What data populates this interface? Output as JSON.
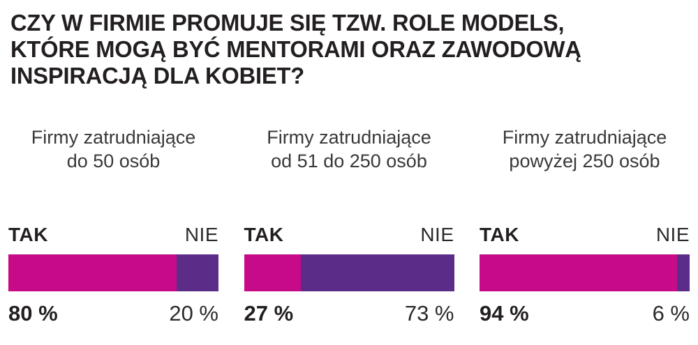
{
  "title": {
    "lines": [
      "CZY W FIRMIE PROMUJE SIĘ TZW. ROLE MODELS,",
      "KTÓRE MOGĄ BYĆ MENTORAMI ORAZ ZAWODOWĄ",
      "INSPIRACJĄ DLA KOBIET?"
    ]
  },
  "colors": {
    "yes_bar": "#c60a88",
    "no_bar": "#5b2d88",
    "title_text": "#231f20"
  },
  "columns": [
    {
      "subtitle_line1": "Firmy zatrudniające",
      "subtitle_line2": "do 50 osób",
      "yes_label": "TAK",
      "no_label": "NIE",
      "yes_value": 80,
      "no_value": 20,
      "yes_value_text": "80 %",
      "no_value_text": "20 %"
    },
    {
      "subtitle_line1": "Firmy zatrudniające",
      "subtitle_line2": "od 51 do 250 osób",
      "yes_label": "TAK",
      "no_label": "NIE",
      "yes_value": 27,
      "no_value": 73,
      "yes_value_text": "27 %",
      "no_value_text": "73 %"
    },
    {
      "subtitle_line1": "Firmy zatrudniające",
      "subtitle_line2": "powyżej 250 osób",
      "yes_label": "TAK",
      "no_label": "NIE",
      "yes_value": 94,
      "no_value": 6,
      "yes_value_text": "94 %",
      "no_value_text": "6 %"
    }
  ],
  "chart_data": {
    "type": "bar",
    "orientation": "horizontal_stacked",
    "title": "CZY W FIRMIE PROMUJE SIĘ TZW. ROLE MODELS, KTÓRE MOGĄ BYĆ MENTORAMI ORAZ ZAWODOWĄ INSPIRACJĄ DLA KOBIET?",
    "categories": [
      "Firmy zatrudniające do 50 osób",
      "Firmy zatrudniające od 51 do 250 osób",
      "Firmy zatrudniające powyżej 250 osób"
    ],
    "series": [
      {
        "name": "TAK",
        "values": [
          80,
          27,
          94
        ],
        "color": "#c60a88"
      },
      {
        "name": "NIE",
        "values": [
          20,
          73,
          6
        ],
        "color": "#5b2d88"
      }
    ],
    "unit": "%",
    "xlim": [
      0,
      100
    ],
    "grid": false,
    "legend_position": "inline-above-each-bar"
  }
}
